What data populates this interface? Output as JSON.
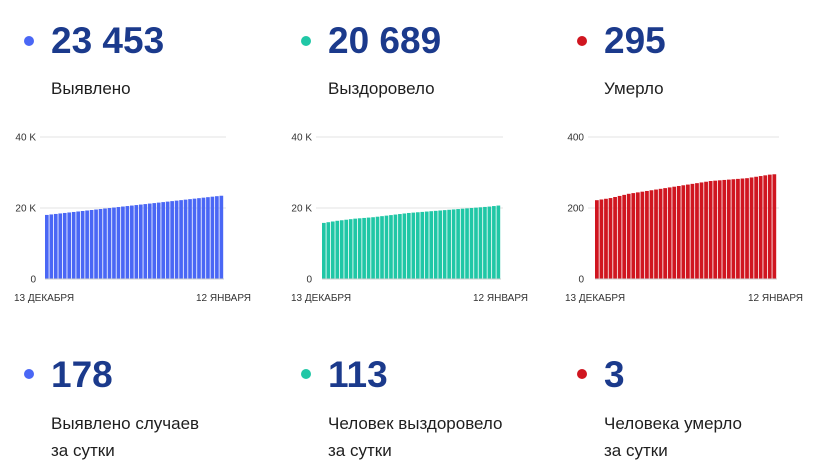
{
  "colors": {
    "blue": "#4a67f5",
    "teal": "#20c7a6",
    "red": "#d01620",
    "number": "#1b3a8c"
  },
  "top": [
    {
      "value": "23 453",
      "label": "Выявлено",
      "color": "#4a67f5"
    },
    {
      "value": "20 689",
      "label": "Выздоровело",
      "color": "#20c7a6"
    },
    {
      "value": "295",
      "label": "Умерло",
      "color": "#d01620"
    }
  ],
  "bottom": [
    {
      "value": "178",
      "label1": "Выявлено случаев",
      "label2": "за сутки",
      "color": "#4a67f5"
    },
    {
      "value": "113",
      "label1": "Человек выздоровело",
      "label2": "за сутки",
      "color": "#20c7a6"
    },
    {
      "value": "3",
      "label1": "Человека умерло",
      "label2": "за сутки",
      "color": "#d01620"
    }
  ],
  "chart_data": [
    {
      "type": "bar",
      "grid": true,
      "x_labels": [
        "13 ДЕКАБРЯ",
        "12 ЯНВАРЯ"
      ],
      "y_ticks": [
        "0",
        "20 K",
        "40 K"
      ],
      "ylim": [
        0,
        40000
      ],
      "color": "#4a67f5",
      "values": [
        18047,
        18186,
        18325,
        18464,
        18603,
        18742,
        18881,
        19020,
        19159,
        19298,
        19437,
        19576,
        19715,
        19854,
        19993,
        20132,
        20271,
        20410,
        20549,
        20688,
        20827,
        20966,
        21105,
        21244,
        21383,
        21522,
        21661,
        21800,
        21939,
        22078,
        22217,
        22356,
        22495,
        22634,
        22773,
        22912,
        23051,
        23190,
        23329,
        23453
      ]
    },
    {
      "type": "bar",
      "grid": true,
      "x_labels": [
        "13 ДЕКАБРЯ",
        "12 ЯНВАРЯ"
      ],
      "y_ticks": [
        "0",
        "20 K",
        "40 K"
      ],
      "ylim": [
        0,
        40000
      ],
      "color": "#20c7a6",
      "values": [
        15800,
        16000,
        16200,
        16400,
        16550,
        16700,
        16850,
        17000,
        17100,
        17200,
        17300,
        17400,
        17550,
        17700,
        17850,
        18000,
        18150,
        18300,
        18450,
        18600,
        18700,
        18800,
        18900,
        19000,
        19100,
        19200,
        19300,
        19400,
        19500,
        19600,
        19700,
        19800,
        19900,
        20000,
        20100,
        20200,
        20300,
        20400,
        20550,
        20689
      ]
    },
    {
      "type": "bar",
      "grid": true,
      "x_labels": [
        "13 ДЕКАБРЯ",
        "12 ЯНВАРЯ"
      ],
      "y_ticks": [
        "0",
        "200",
        "400"
      ],
      "ylim": [
        0,
        400
      ],
      "color": "#d01620",
      "values": [
        222,
        224,
        226,
        228,
        231,
        234,
        237,
        240,
        242,
        244,
        246,
        248,
        250,
        252,
        254,
        256,
        258,
        260,
        262,
        264,
        266,
        268,
        270,
        272,
        274,
        276,
        277,
        278,
        279,
        280,
        281,
        282,
        283,
        284,
        286,
        288,
        290,
        292,
        294,
        295
      ]
    }
  ]
}
